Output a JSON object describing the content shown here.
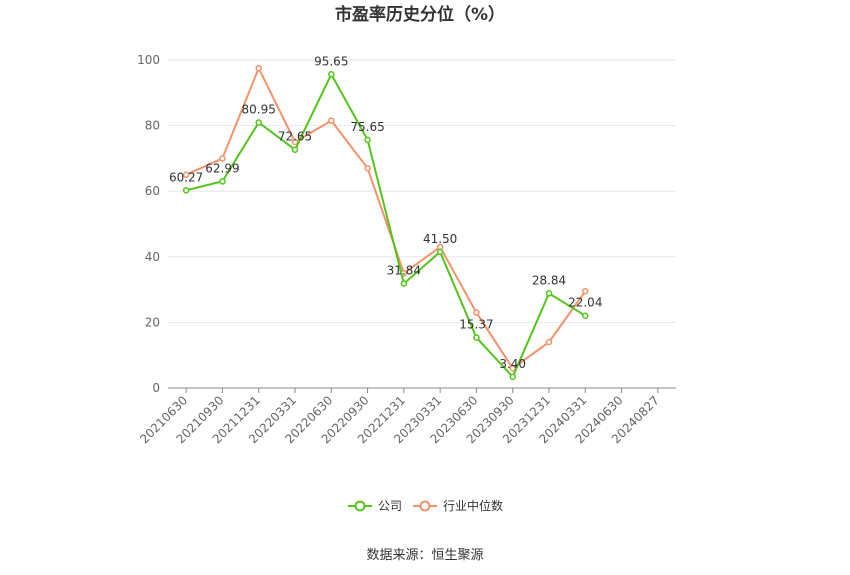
{
  "chart_data": {
    "type": "line",
    "title": "市盈率历史分位（%）",
    "categories": [
      "20210630",
      "20210930",
      "20211231",
      "20220331",
      "20220630",
      "20220930",
      "20221231",
      "20230331",
      "20230630",
      "20230930",
      "20231231",
      "20240331",
      "20240630",
      "20240827"
    ],
    "ylim": [
      0,
      100
    ],
    "yticks": [
      "0",
      "20",
      "40",
      "60",
      "80",
      "100"
    ],
    "grid": true,
    "legend_position": "bottom",
    "series": [
      {
        "name": "公司",
        "color": "#52c41a",
        "values": [
          60.27,
          62.99,
          80.95,
          72.65,
          95.65,
          75.65,
          31.84,
          41.5,
          15.37,
          3.4,
          28.84,
          22.04,
          null,
          null
        ],
        "labels": [
          "60.27",
          "62.99",
          "80.95",
          "72.65",
          "95.65",
          "75.65",
          "31.84",
          "41.50",
          "15.37",
          "3.40",
          "28.84",
          "22.04",
          "",
          ""
        ]
      },
      {
        "name": "行业中位数",
        "color": "#f5926b",
        "values": [
          65,
          70,
          97.5,
          75,
          81.5,
          67,
          35,
          43,
          23,
          6,
          14,
          29.5,
          null,
          null
        ]
      }
    ],
    "source": "数据来源：恒生聚源"
  }
}
